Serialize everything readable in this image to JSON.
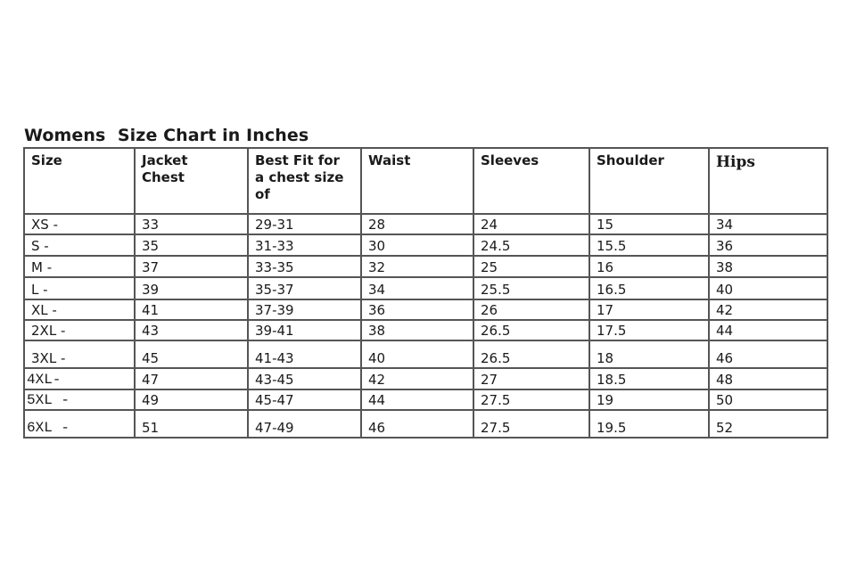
{
  "title": "Womens  Size Chart in Inches",
  "table": {
    "headers": [
      "Size",
      "Jacket\nChest",
      "Best Fit for\na chest size\nof",
      "Waist",
      "Sleeves",
      "Shoulder",
      "Hips"
    ],
    "rows": [
      [
        "XS -",
        "33",
        "29-31",
        "28",
        "24",
        "15",
        "34"
      ],
      [
        "S -",
        "35",
        "31-33",
        "30",
        "24.5",
        "15.5",
        "36"
      ],
      [
        "M -",
        "37",
        "33-35",
        "32",
        "25",
        "16",
        "38"
      ],
      [
        "L -",
        "39",
        "35-37",
        "34",
        "25.5",
        "16.5",
        "40"
      ],
      [
        "XL -",
        "41",
        "37-39",
        "36",
        "26",
        "17",
        "42"
      ],
      [
        "2XL -",
        "43",
        "39-41",
        "38",
        "26.5",
        "17.5",
        "44"
      ],
      [
        "3XL -",
        "45",
        "41-43",
        "40",
        "26.5",
        "18",
        "46"
      ],
      [
        "4XL-",
        "47",
        "43-45",
        "42",
        "27",
        "18.5",
        "48"
      ],
      [
        "5XL -",
        "49",
        "45-47",
        "44",
        "27.5",
        "19",
        "50"
      ],
      [
        "6XL -",
        "51",
        "47-49",
        "46",
        "27.5",
        "19.5",
        "52"
      ]
    ]
  }
}
